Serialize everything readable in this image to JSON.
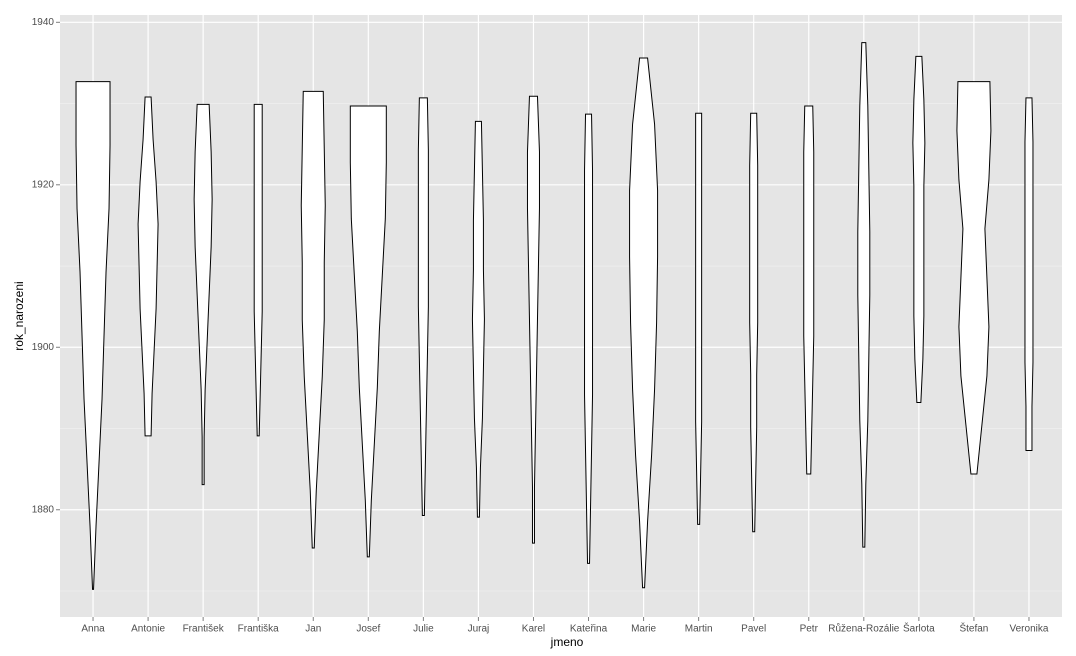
{
  "chart_data": {
    "type": "violin",
    "x_label": "jmeno",
    "y_label": "rok_narozeni",
    "ylim": [
      1866.8,
      1940.9
    ],
    "yticks": [
      1880,
      1900,
      1920,
      1940
    ],
    "y_minor_ticks": [
      1870,
      1890,
      1910,
      1930
    ],
    "grid": true,
    "fill": "#ffffff",
    "outline": "#000000",
    "series": [
      {
        "name": "Anna",
        "min": 1870.2,
        "max": 1932.7,
        "density": [
          0.5,
          3,
          6,
          9,
          11,
          13,
          16,
          17,
          17
        ]
      },
      {
        "name": "Antonie",
        "min": 1889.1,
        "max": 1930.8,
        "density": [
          3,
          4,
          6,
          8,
          9,
          10,
          8,
          5,
          3
        ]
      },
      {
        "name": "František",
        "min": 1883.1,
        "max": 1929.9,
        "density": [
          1,
          1,
          2,
          4,
          6,
          8,
          9,
          8,
          6
        ]
      },
      {
        "name": "Františka",
        "min": 1889.1,
        "max": 1929.9,
        "density": [
          1,
          2,
          3,
          4,
          4,
          4,
          4,
          4,
          4
        ]
      },
      {
        "name": "Jan",
        "min": 1875.3,
        "max": 1931.5,
        "density": [
          1,
          3,
          6,
          9,
          11,
          11,
          12,
          11,
          10
        ]
      },
      {
        "name": "Josef",
        "min": 1874.2,
        "max": 1929.7,
        "density": [
          1,
          3,
          6,
          9,
          11,
          14,
          17,
          18,
          18
        ]
      },
      {
        "name": "Julie",
        "min": 1879.3,
        "max": 1930.7,
        "density": [
          1,
          2,
          3,
          4,
          5,
          5,
          5,
          5,
          4
        ]
      },
      {
        "name": "Juraj",
        "min": 1879.1,
        "max": 1927.8,
        "density": [
          1,
          2,
          4,
          5,
          6,
          5,
          5,
          4,
          3
        ]
      },
      {
        "name": "Karel",
        "min": 1875.9,
        "max": 1930.9,
        "density": [
          1,
          1,
          2,
          3,
          4,
          5,
          6,
          6,
          4
        ]
      },
      {
        "name": "Kateřina",
        "min": 1873.4,
        "max": 1928.7,
        "density": [
          1,
          2,
          3,
          4,
          4,
          4,
          4,
          4,
          3
        ]
      },
      {
        "name": "Marie",
        "min": 1870.4,
        "max": 1935.6,
        "density": [
          1,
          4,
          8,
          11,
          13,
          14,
          14,
          11,
          4
        ]
      },
      {
        "name": "Martin",
        "min": 1878.2,
        "max": 1928.8,
        "density": [
          1,
          2,
          3,
          3,
          3,
          3,
          3,
          3,
          3
        ]
      },
      {
        "name": "Pavel",
        "min": 1877.3,
        "max": 1928.8,
        "density": [
          1,
          2,
          3,
          3,
          4,
          4,
          4,
          4,
          3
        ]
      },
      {
        "name": "Petr",
        "min": 1884.4,
        "max": 1929.7,
        "density": [
          2,
          3,
          4,
          5,
          5,
          5,
          5,
          5,
          4
        ]
      },
      {
        "name": "Růžena-Rozálie",
        "min": 1875.4,
        "max": 1937.5,
        "density": [
          1,
          2,
          4,
          5,
          6,
          6,
          5,
          4,
          2
        ]
      },
      {
        "name": "Šarlota",
        "min": 1893.2,
        "max": 1935.8,
        "density": [
          2,
          4,
          5,
          5,
          5,
          5,
          6,
          5,
          3
        ]
      },
      {
        "name": "Štefan",
        "min": 1884.4,
        "max": 1932.7,
        "density": [
          3,
          8,
          13,
          15,
          13,
          11,
          15,
          17,
          16
        ]
      },
      {
        "name": "Veronika",
        "min": 1887.3,
        "max": 1930.7,
        "density": [
          3,
          3,
          4,
          4,
          4,
          4,
          4,
          4,
          3
        ]
      }
    ]
  }
}
